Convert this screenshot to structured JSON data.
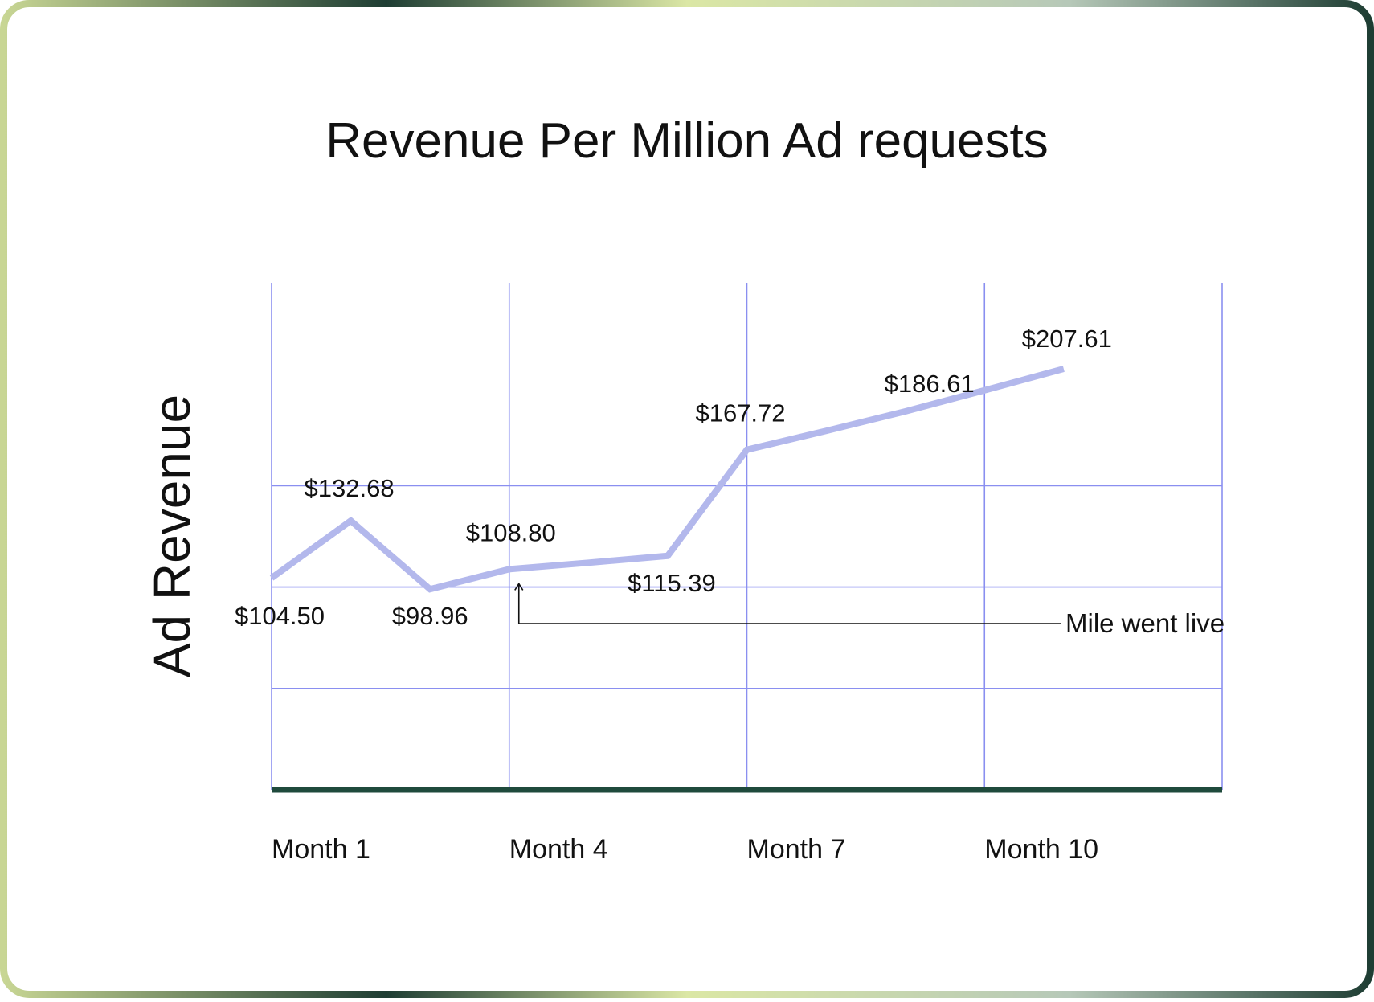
{
  "chart_data": {
    "type": "line",
    "title": "Revenue Per Million Ad requests",
    "ylabel": "Ad Revenue",
    "xlabel": "",
    "x": [
      1,
      2,
      3,
      4,
      5,
      6,
      7,
      8,
      9,
      10,
      11
    ],
    "x_tick_labels": [
      {
        "x": 1,
        "label": "Month 1"
      },
      {
        "x": 4,
        "label": "Month 4"
      },
      {
        "x": 7,
        "label": "Month 7"
      },
      {
        "x": 10,
        "label": "Month 10"
      }
    ],
    "series": [
      {
        "values": [
          104.5,
          132.68,
          98.96,
          108.8,
          112.0,
          115.39,
          167.72,
          177.0,
          186.61,
          197.0,
          207.61
        ]
      }
    ],
    "data_labels": [
      {
        "x": 1,
        "text": "$104.50"
      },
      {
        "x": 2,
        "text": "$132.68"
      },
      {
        "x": 3,
        "text": "$98.96"
      },
      {
        "x": 4,
        "text": "$108.80"
      },
      {
        "x": 6,
        "text": "$115.39"
      },
      {
        "x": 7,
        "text": "$167.72"
      },
      {
        "x": 9,
        "text": "$186.61"
      },
      {
        "x": 11,
        "text": "$207.61"
      }
    ],
    "annotation": {
      "x": 4,
      "text": "Mile went live"
    },
    "xlim": [
      1,
      13
    ],
    "ylim": [
      0,
      250
    ],
    "grid": true,
    "colors": {
      "line": "#b3b8ec",
      "grid": "#8a8ff0",
      "axis": "#1f4a3c",
      "text": "#111111"
    }
  }
}
